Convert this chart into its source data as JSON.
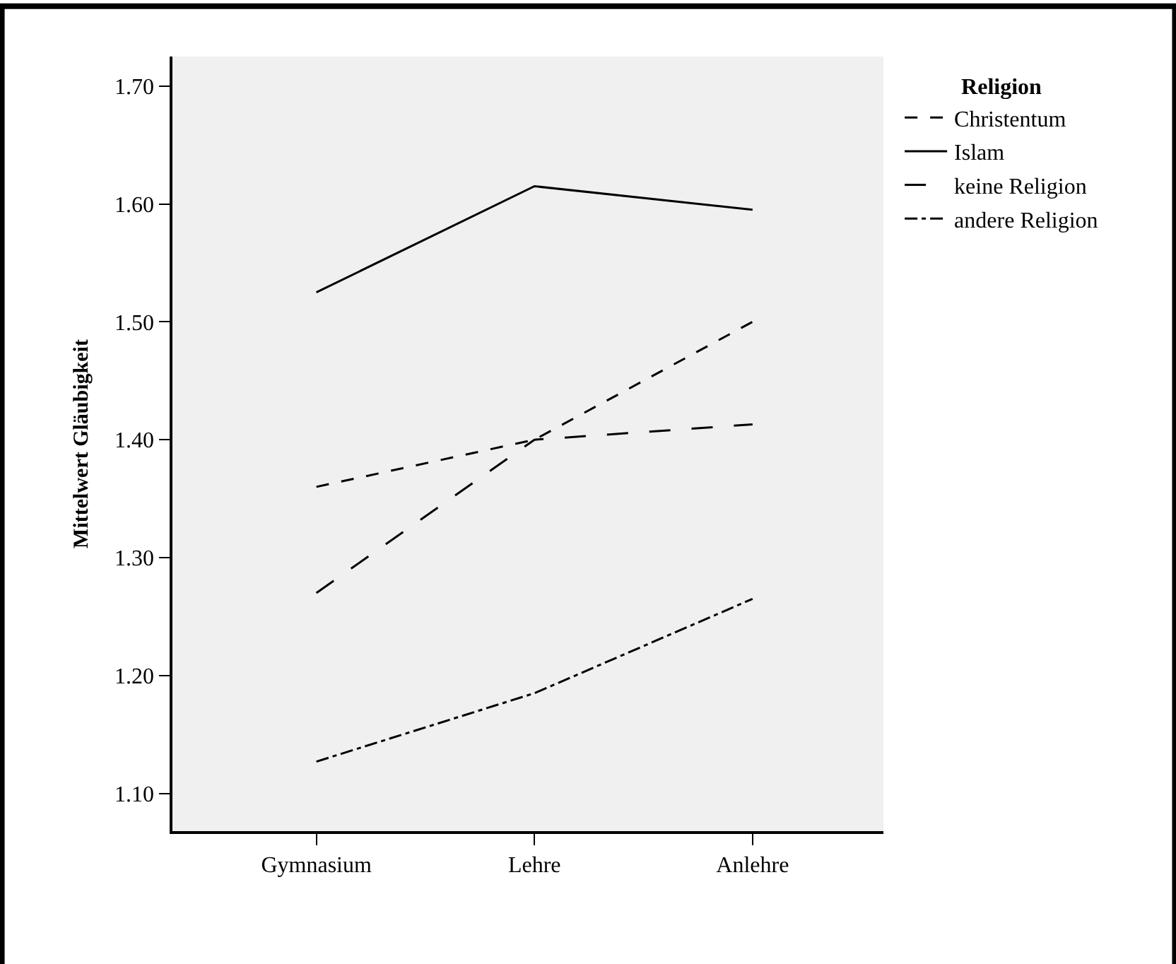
{
  "chart_data": {
    "type": "line",
    "ylabel": "Mittelwert Gläubigkeit",
    "legend_title": "Religion",
    "categories": [
      "Gymnasium",
      "Lehre",
      "Anlehre"
    ],
    "series": [
      {
        "name": "Christentum",
        "color": "#000000",
        "line_style": "dotted",
        "values": [
          1.36,
          1.4,
          1.5
        ]
      },
      {
        "name": "Islam",
        "color": "#000000",
        "line_style": "solid",
        "values": [
          1.525,
          1.615,
          1.595
        ]
      },
      {
        "name": "keine Religion",
        "color": "#000000",
        "line_style": "dashed",
        "values": [
          1.27,
          1.4,
          1.413
        ]
      },
      {
        "name": "andere Religion",
        "color": "#000000",
        "line_style": "dashdot",
        "values": [
          1.127,
          1.185,
          1.265
        ]
      }
    ],
    "ylim": [
      1.068,
      1.725
    ],
    "yticks": [
      {
        "value": 1.1,
        "label": "1.10"
      },
      {
        "value": 1.2,
        "label": "1.20"
      },
      {
        "value": 1.3,
        "label": "1.30"
      },
      {
        "value": 1.4,
        "label": "1.40"
      },
      {
        "value": 1.5,
        "label": "1.50"
      },
      {
        "value": 1.6,
        "label": "1.60"
      },
      {
        "value": 1.7,
        "label": "1.70"
      }
    ],
    "grid": false,
    "legend": "top right",
    "marker": "none"
  }
}
